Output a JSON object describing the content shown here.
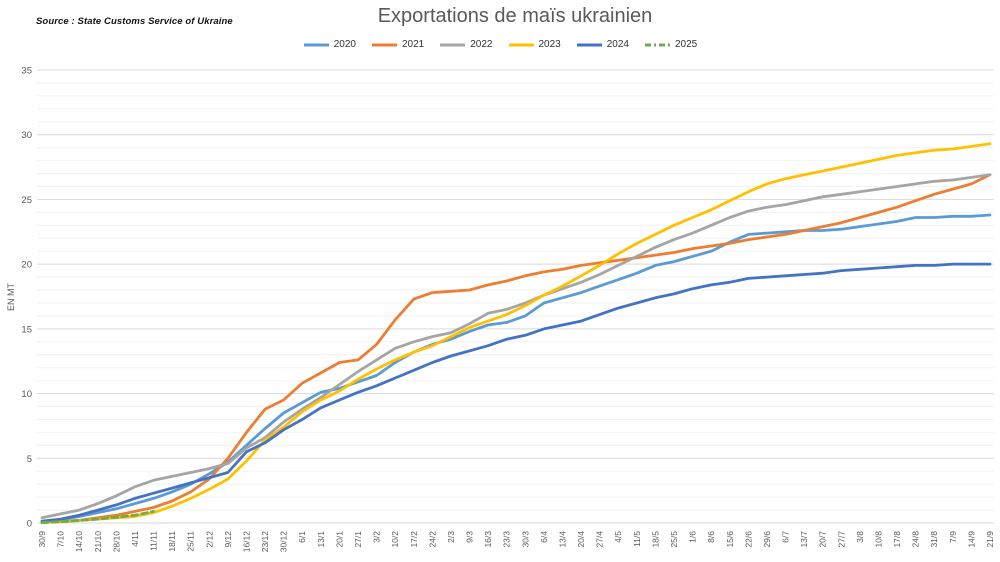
{
  "source_note": "Source : State Customs Service of Ukraine",
  "chart_data": {
    "type": "line",
    "title": "Exportations de maïs ukrainien",
    "ylabel": "EN MT",
    "ylim": [
      0,
      35
    ],
    "ytick_step": 5,
    "yminor_step": 1,
    "grid": true,
    "legend_position": "top",
    "categories": [
      "30/9",
      "7/10",
      "14/10",
      "21/10",
      "28/10",
      "4/11",
      "11/11",
      "18/11",
      "25/11",
      "2/12",
      "9/12",
      "16/12",
      "23/12",
      "30/12",
      "6/1",
      "13/1",
      "20/1",
      "27/1",
      "3/2",
      "10/2",
      "17/2",
      "24/2",
      "2/3",
      "9/3",
      "16/3",
      "23/3",
      "30/3",
      "6/4",
      "13/4",
      "20/4",
      "27/4",
      "4/5",
      "11/5",
      "18/5",
      "25/5",
      "1/6",
      "8/6",
      "15/6",
      "22/6",
      "29/6",
      "6/7",
      "13/7",
      "20/7",
      "27/7",
      "3/8",
      "10/8",
      "17/8",
      "24/8",
      "31/8",
      "7/9",
      "14/9",
      "21/9"
    ],
    "series": [
      {
        "name": "2020",
        "color": "#5B9BD5",
        "dash": null,
        "values": [
          0.1,
          0.25,
          0.5,
          0.8,
          1.1,
          1.5,
          1.9,
          2.4,
          3.0,
          3.8,
          4.7,
          6.0,
          7.3,
          8.5,
          9.3,
          10.1,
          10.4,
          10.9,
          11.4,
          12.4,
          13.2,
          13.8,
          14.2,
          14.8,
          15.3,
          15.5,
          16.0,
          17.0,
          17.4,
          17.8,
          18.3,
          18.8,
          19.3,
          19.9,
          20.2,
          20.6,
          21.0,
          21.7,
          22.3,
          22.4,
          22.5,
          22.6,
          22.6,
          22.7,
          22.9,
          23.1,
          23.3,
          23.6,
          23.6,
          23.7,
          23.7,
          23.8
        ]
      },
      {
        "name": "2021",
        "color": "#ED7D31",
        "dash": null,
        "values": [
          0.05,
          0.1,
          0.2,
          0.4,
          0.6,
          0.9,
          1.2,
          1.7,
          2.4,
          3.4,
          5.0,
          7.0,
          8.8,
          9.5,
          10.8,
          11.6,
          12.4,
          12.6,
          13.8,
          15.7,
          17.3,
          17.8,
          17.9,
          18.0,
          18.4,
          18.7,
          19.1,
          19.4,
          19.6,
          19.9,
          20.1,
          20.3,
          20.5,
          20.7,
          20.9,
          21.2,
          21.4,
          21.6,
          21.9,
          22.1,
          22.3,
          22.6,
          22.9,
          23.2,
          23.6,
          24.0,
          24.4,
          24.9,
          25.4,
          25.8,
          26.2,
          26.9
        ]
      },
      {
        "name": "2022",
        "color": "#A5A5A5",
        "dash": null,
        "values": [
          0.4,
          0.7,
          1.0,
          1.5,
          2.1,
          2.8,
          3.3,
          3.6,
          3.9,
          4.2,
          4.6,
          5.8,
          6.6,
          7.8,
          8.8,
          9.7,
          10.7,
          11.7,
          12.6,
          13.5,
          14.0,
          14.4,
          14.7,
          15.4,
          16.2,
          16.5,
          17.0,
          17.6,
          18.1,
          18.6,
          19.2,
          19.9,
          20.6,
          21.3,
          21.9,
          22.4,
          23.0,
          23.6,
          24.1,
          24.4,
          24.6,
          24.9,
          25.2,
          25.4,
          25.6,
          25.8,
          26.0,
          26.2,
          26.4,
          26.5,
          26.7,
          26.9
        ]
      },
      {
        "name": "2023",
        "color": "#FFC000",
        "dash": null,
        "values": [
          0.02,
          0.1,
          0.2,
          0.3,
          0.4,
          0.5,
          0.8,
          1.3,
          1.9,
          2.6,
          3.4,
          4.8,
          6.4,
          7.4,
          8.6,
          9.5,
          10.2,
          11.1,
          11.9,
          12.6,
          13.2,
          13.7,
          14.4,
          15.1,
          15.6,
          16.1,
          16.8,
          17.6,
          18.3,
          19.1,
          19.9,
          20.8,
          21.6,
          22.3,
          23.0,
          23.6,
          24.2,
          24.9,
          25.6,
          26.2,
          26.6,
          26.9,
          27.2,
          27.5,
          27.8,
          28.1,
          28.4,
          28.6,
          28.8,
          28.9,
          29.1,
          29.3
        ]
      },
      {
        "name": "2024",
        "color": "#4472C4",
        "dash": null,
        "values": [
          0.15,
          0.3,
          0.6,
          1.0,
          1.4,
          1.9,
          2.3,
          2.7,
          3.1,
          3.5,
          3.9,
          5.5,
          6.2,
          7.2,
          8.0,
          8.9,
          9.5,
          10.1,
          10.6,
          11.2,
          11.8,
          12.4,
          12.9,
          13.3,
          13.7,
          14.2,
          14.5,
          15.0,
          15.3,
          15.6,
          16.1,
          16.6,
          17.0,
          17.4,
          17.7,
          18.1,
          18.4,
          18.6,
          18.9,
          19.0,
          19.1,
          19.2,
          19.3,
          19.5,
          19.6,
          19.7,
          19.8,
          19.9,
          19.9,
          20.0,
          20.0,
          20.0
        ]
      },
      {
        "name": "2025",
        "color": "#70AD47",
        "dash": "6 4",
        "values": [
          0.03,
          0.1,
          0.2,
          0.3,
          0.45,
          0.6,
          0.9
        ]
      }
    ],
    "colors": {
      "title_text": "#595959",
      "tick_text": "#595959",
      "gridline_major": "#D9D9D9",
      "gridline_minor": "#F2F2F2",
      "background": "#FFFFFF"
    }
  }
}
